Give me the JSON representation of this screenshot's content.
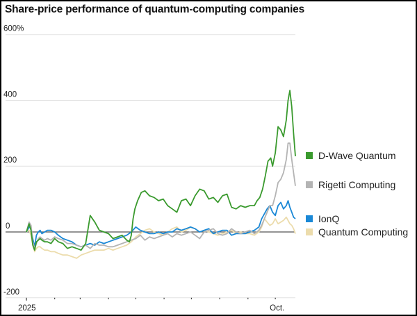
{
  "chart_data": {
    "type": "line",
    "title": "Share-price performance of quantum-computing companies",
    "xlabel": "",
    "ylabel": "",
    "ylim": [
      -200,
      600
    ],
    "y_ticks": [
      {
        "value": 600,
        "label": "600%"
      },
      {
        "value": 400,
        "label": "400"
      },
      {
        "value": 200,
        "label": "200"
      },
      {
        "value": 0,
        "label": "0"
      },
      {
        "value": -200,
        "label": "-200"
      }
    ],
    "x_unit": "days since 2025-01-01",
    "xlim": [
      0,
      295
    ],
    "x_ticks": [
      {
        "day": 0,
        "label": "2025"
      },
      {
        "day": 31,
        "label": ""
      },
      {
        "day": 59,
        "label": ""
      },
      {
        "day": 90,
        "label": ""
      },
      {
        "day": 120,
        "label": ""
      },
      {
        "day": 151,
        "label": ""
      },
      {
        "day": 181,
        "label": ""
      },
      {
        "day": 212,
        "label": ""
      },
      {
        "day": 243,
        "label": ""
      },
      {
        "day": 273,
        "label": "Oct."
      }
    ],
    "grid": true,
    "legend_position": "right",
    "series": [
      {
        "name": "D-Wave Quantum",
        "color": "#3a9a2e",
        "x": [
          0,
          3,
          5,
          7,
          9,
          11,
          13,
          15,
          17,
          20,
          23,
          27,
          31,
          35,
          40,
          45,
          50,
          55,
          60,
          65,
          70,
          75,
          80,
          85,
          90,
          95,
          100,
          105,
          110,
          113,
          115,
          117,
          119,
          122,
          126,
          130,
          135,
          140,
          145,
          150,
          155,
          160,
          165,
          170,
          175,
          180,
          185,
          190,
          195,
          200,
          205,
          210,
          215,
          220,
          225,
          230,
          235,
          240,
          245,
          250,
          253,
          256,
          259,
          262,
          265,
          268,
          270,
          273,
          276,
          279,
          282,
          285,
          287,
          289,
          291,
          293,
          295
        ],
        "values": [
          0,
          25,
          5,
          -40,
          -55,
          -30,
          -25,
          -20,
          -25,
          -30,
          -30,
          -35,
          -20,
          -30,
          -35,
          -50,
          -45,
          -50,
          -55,
          -35,
          50,
          30,
          5,
          0,
          -5,
          -20,
          -15,
          -10,
          -25,
          -30,
          -10,
          40,
          70,
          95,
          120,
          125,
          110,
          105,
          95,
          100,
          80,
          70,
          60,
          95,
          100,
          80,
          110,
          130,
          125,
          100,
          105,
          90,
          110,
          115,
          75,
          70,
          80,
          75,
          80,
          80,
          95,
          105,
          130,
          170,
          215,
          225,
          200,
          240,
          320,
          310,
          290,
          340,
          400,
          430,
          380,
          300,
          230
        ]
      },
      {
        "name": "Rigetti Computing",
        "color": "#b4b4b4",
        "x": [
          0,
          3,
          5,
          7,
          9,
          11,
          13,
          15,
          17,
          20,
          23,
          27,
          31,
          35,
          40,
          45,
          50,
          55,
          60,
          65,
          70,
          75,
          80,
          85,
          90,
          95,
          100,
          105,
          110,
          115,
          120,
          125,
          130,
          135,
          140,
          145,
          150,
          155,
          160,
          165,
          170,
          175,
          180,
          185,
          190,
          195,
          200,
          205,
          210,
          215,
          220,
          225,
          230,
          235,
          240,
          245,
          250,
          255,
          258,
          261,
          264,
          267,
          270,
          273,
          276,
          279,
          282,
          285,
          287,
          289,
          291,
          293,
          295
        ],
        "values": [
          0,
          30,
          20,
          -30,
          -50,
          -35,
          -20,
          -15,
          -20,
          -25,
          -20,
          -25,
          -15,
          -20,
          -25,
          -35,
          -35,
          -40,
          -45,
          -40,
          -50,
          -35,
          -40,
          -40,
          -45,
          -45,
          -40,
          -35,
          -30,
          -25,
          -20,
          -10,
          -25,
          -15,
          -20,
          -15,
          -10,
          -5,
          -15,
          -5,
          -10,
          -5,
          0,
          -10,
          -20,
          0,
          5,
          10,
          -5,
          -10,
          -5,
          10,
          0,
          -5,
          0,
          5,
          -5,
          5,
          20,
          40,
          60,
          80,
          80,
          110,
          150,
          160,
          180,
          220,
          270,
          270,
          220,
          180,
          140
        ]
      },
      {
        "name": "IonQ",
        "color": "#1a88d6",
        "x": [
          0,
          3,
          5,
          7,
          9,
          11,
          13,
          15,
          17,
          20,
          23,
          27,
          31,
          35,
          40,
          45,
          50,
          55,
          60,
          65,
          70,
          75,
          80,
          85,
          90,
          95,
          100,
          105,
          110,
          115,
          120,
          125,
          130,
          135,
          140,
          145,
          150,
          155,
          160,
          165,
          170,
          175,
          180,
          185,
          190,
          195,
          200,
          205,
          210,
          215,
          220,
          225,
          230,
          235,
          240,
          245,
          250,
          255,
          258,
          261,
          264,
          267,
          270,
          273,
          276,
          279,
          282,
          285,
          287,
          289,
          291,
          293,
          295
        ],
        "values": [
          0,
          15,
          10,
          -20,
          -45,
          -10,
          0,
          5,
          -5,
          0,
          5,
          5,
          0,
          -10,
          -20,
          -25,
          -30,
          -40,
          -45,
          -40,
          -35,
          -40,
          -30,
          -35,
          -30,
          -25,
          -20,
          -15,
          -10,
          0,
          15,
          5,
          0,
          -5,
          -5,
          0,
          -5,
          0,
          0,
          10,
          5,
          10,
          15,
          10,
          0,
          5,
          10,
          -5,
          0,
          5,
          5,
          -10,
          -5,
          -5,
          -5,
          0,
          5,
          15,
          40,
          55,
          70,
          80,
          60,
          50,
          80,
          90,
          70,
          80,
          95,
          75,
          60,
          45,
          40
        ]
      },
      {
        "name": "Quantum Computing",
        "color": "#ecdcac",
        "x": [
          0,
          3,
          5,
          7,
          9,
          11,
          13,
          15,
          17,
          20,
          23,
          27,
          31,
          35,
          40,
          45,
          50,
          55,
          60,
          65,
          70,
          75,
          80,
          85,
          90,
          95,
          100,
          105,
          110,
          115,
          120,
          125,
          130,
          135,
          140,
          145,
          150,
          155,
          160,
          165,
          170,
          175,
          180,
          185,
          190,
          195,
          200,
          205,
          210,
          215,
          220,
          225,
          230,
          235,
          240,
          245,
          250,
          255,
          258,
          261,
          264,
          267,
          270,
          273,
          276,
          279,
          282,
          285,
          287,
          289,
          291,
          293,
          295
        ],
        "values": [
          0,
          5,
          -10,
          -40,
          -60,
          -50,
          -45,
          -45,
          -50,
          -55,
          -55,
          -60,
          -60,
          -65,
          -70,
          -70,
          -75,
          -80,
          -70,
          -65,
          -60,
          -55,
          -55,
          -55,
          -50,
          -55,
          -50,
          -45,
          -40,
          -30,
          -15,
          -5,
          5,
          10,
          0,
          -5,
          -10,
          0,
          10,
          15,
          0,
          5,
          15,
          10,
          0,
          5,
          0,
          -5,
          -10,
          -5,
          0,
          5,
          -5,
          0,
          -5,
          -5,
          -10,
          0,
          15,
          40,
          30,
          20,
          25,
          40,
          25,
          30,
          35,
          45,
          35,
          25,
          20,
          10,
          -5
        ]
      }
    ]
  }
}
